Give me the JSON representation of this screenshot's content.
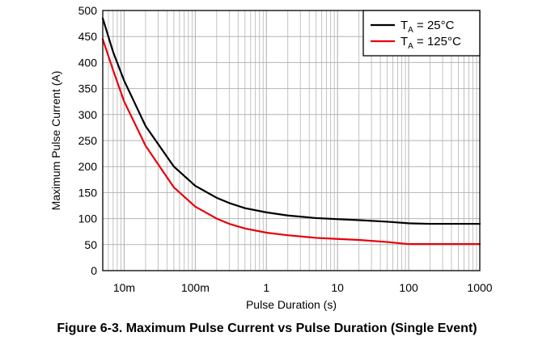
{
  "caption": "Figure 6-3. Maximum Pulse Current vs Pulse Duration (Single Event)",
  "chart_data": {
    "type": "line",
    "xlabel": "Pulse Duration (s)",
    "ylabel": "Maximum Pulse Current (A)",
    "xscale": "log",
    "xlim": [
      0.005,
      1000
    ],
    "ylim": [
      0,
      500
    ],
    "x_ticks": [
      {
        "value": 0.01,
        "label": "10m"
      },
      {
        "value": 0.1,
        "label": "100m"
      },
      {
        "value": 1,
        "label": "1"
      },
      {
        "value": 10,
        "label": "10"
      },
      {
        "value": 100,
        "label": "100"
      },
      {
        "value": 1000,
        "label": "1000"
      }
    ],
    "y_ticks": [
      0,
      50,
      100,
      150,
      200,
      250,
      300,
      350,
      400,
      450,
      500
    ],
    "grid": true,
    "legend_position": "top-right",
    "series": [
      {
        "name": "TA = 25°C",
        "name_main": "T",
        "name_sub": "A",
        "name_rest": " = 25°C",
        "color": "#000000",
        "points": [
          [
            0.005,
            485
          ],
          [
            0.007,
            420
          ],
          [
            0.01,
            365
          ],
          [
            0.02,
            278
          ],
          [
            0.05,
            200
          ],
          [
            0.1,
            163
          ],
          [
            0.2,
            140
          ],
          [
            0.3,
            130
          ],
          [
            0.5,
            120
          ],
          [
            1,
            112
          ],
          [
            2,
            106
          ],
          [
            5,
            101
          ],
          [
            10,
            99
          ],
          [
            20,
            97
          ],
          [
            50,
            94
          ],
          [
            100,
            91
          ],
          [
            200,
            90
          ],
          [
            500,
            90
          ],
          [
            1000,
            90
          ]
        ]
      },
      {
        "name": "TA = 125°C",
        "name_main": "T",
        "name_sub": "A",
        "name_rest": " = 125°C",
        "color": "#e8000b",
        "points": [
          [
            0.005,
            445
          ],
          [
            0.007,
            385
          ],
          [
            0.01,
            325
          ],
          [
            0.02,
            240
          ],
          [
            0.05,
            160
          ],
          [
            0.1,
            123
          ],
          [
            0.2,
            100
          ],
          [
            0.3,
            90
          ],
          [
            0.5,
            81
          ],
          [
            1,
            73
          ],
          [
            2,
            68
          ],
          [
            5,
            63
          ],
          [
            10,
            61
          ],
          [
            20,
            59
          ],
          [
            50,
            55
          ],
          [
            100,
            51
          ],
          [
            200,
            51
          ],
          [
            500,
            51
          ],
          [
            1000,
            51
          ]
        ]
      }
    ]
  }
}
